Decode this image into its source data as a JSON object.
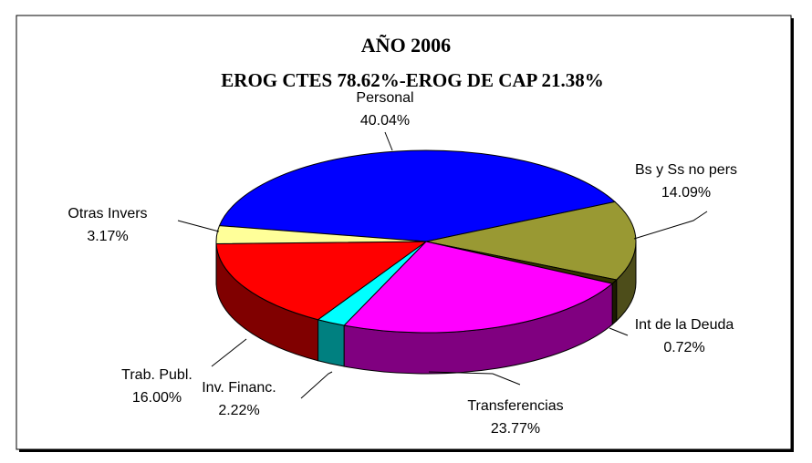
{
  "chart_data": {
    "type": "pie",
    "title": "AÑO 2006",
    "subtitle": "EROG CTES 78.62%-EROG DE CAP 21.38%",
    "categories": [
      "Personal",
      "Bs y Ss no pers",
      "Int de la Deuda",
      "Transferencias",
      "Inv. Financ.",
      "Trab. Publ.",
      "Otras Invers"
    ],
    "values": [
      40.04,
      14.09,
      0.72,
      23.77,
      2.22,
      16.0,
      3.17
    ],
    "value_labels": [
      "40.04%",
      "14.09%",
      "0.72%",
      "23.77%",
      "2.22%",
      "16.00%",
      "3.17%"
    ],
    "colors": [
      "#0000ff",
      "#999933",
      "#333300",
      "#ff00ff",
      "#00ffff",
      "#ff0000",
      "#ffff99"
    ]
  }
}
